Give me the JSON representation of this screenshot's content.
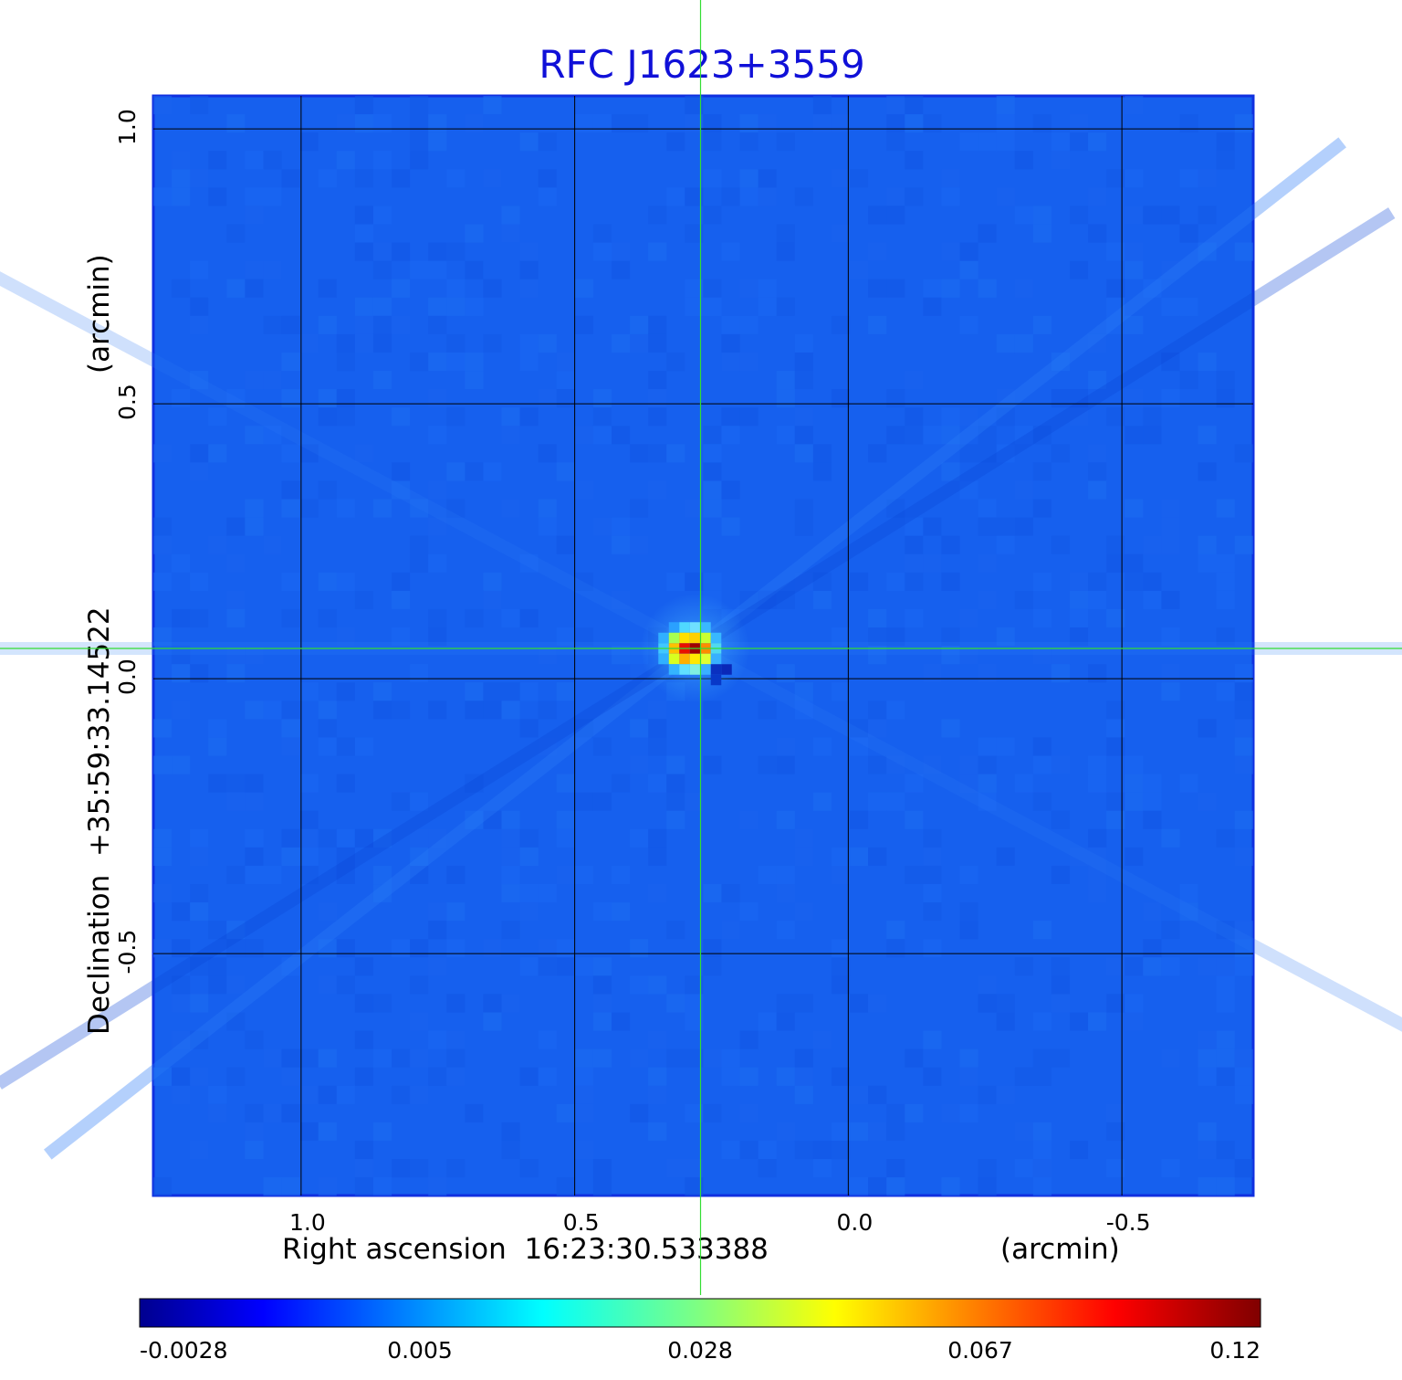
{
  "chart_data": {
    "type": "heatmap",
    "title": "RFC J1623+3559",
    "xlabel": "Right ascension  16:23:30.533388",
    "xunit": "(arcmin)",
    "ylabel": "Declination  +35:59:33.14522",
    "yunit": "(arcmin)",
    "x_axis_reversed": true,
    "xlim": [
      1.27,
      -0.74
    ],
    "ylim": [
      -0.94,
      1.06
    ],
    "x_ticks": [
      1.0,
      0.5,
      0.0,
      -0.5
    ],
    "x_tick_labels": [
      "1.0",
      "0.5",
      "0.0",
      "-0.5"
    ],
    "y_ticks": [
      1.0,
      0.5,
      0.0,
      -0.5
    ],
    "y_tick_labels": [
      "1.0",
      "0.5",
      "0.0",
      "-0.5"
    ],
    "grid": true,
    "crosshair": {
      "x": 0.27,
      "y": 0.055,
      "color": "#33dd33"
    },
    "source_peak": {
      "x": 0.28,
      "y": 0.055,
      "value": 0.12
    },
    "background_value": 0.0005,
    "colorbar": {
      "position": "bottom",
      "tick_labels": [
        "-0.0028",
        "0.005",
        "0.028",
        "0.067",
        "0.12"
      ],
      "colormap": "jet"
    }
  }
}
